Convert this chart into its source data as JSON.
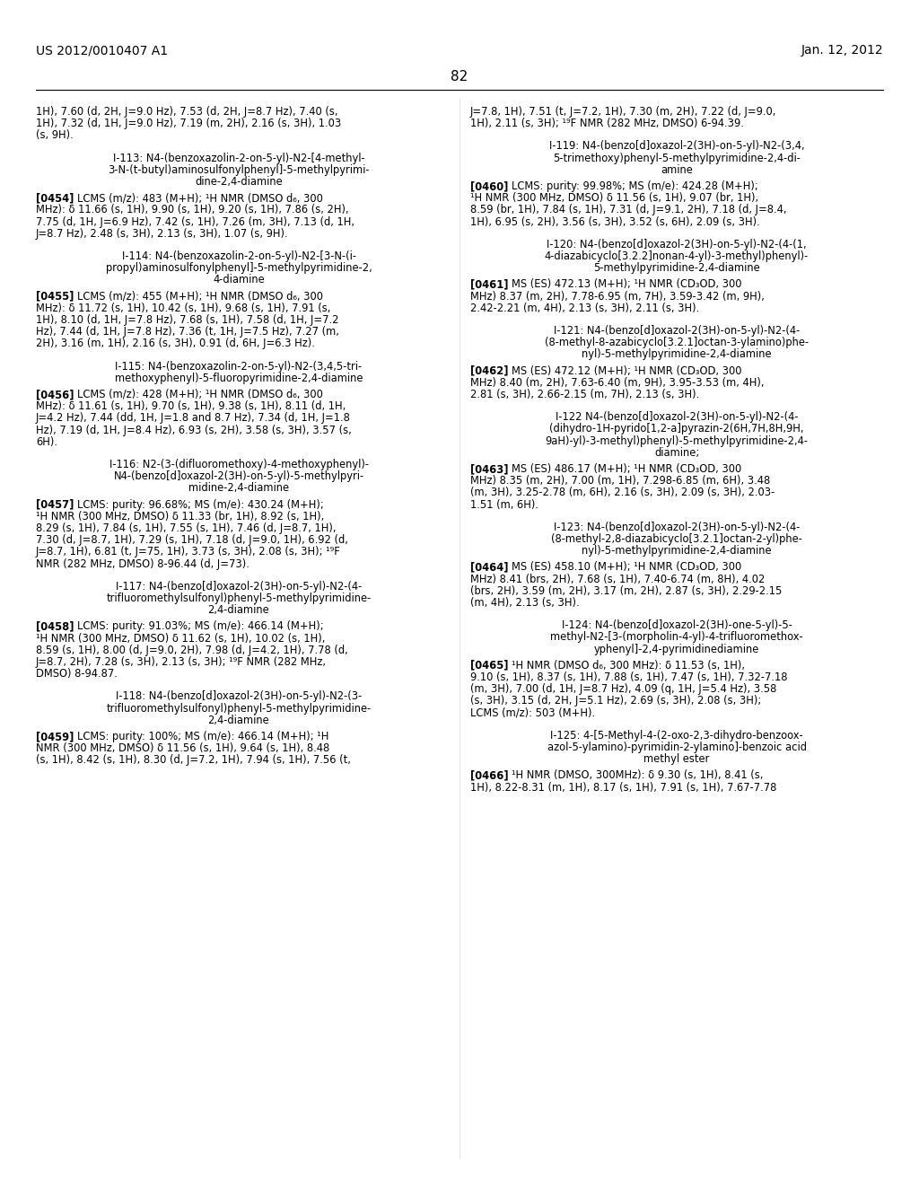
{
  "page_number": "82",
  "header_left": "US 2012/0010407 A1",
  "header_right": "Jan. 12, 2012",
  "background_color": "#ffffff",
  "text_color": "#000000",
  "left_col_paragraphs": [
    {
      "type": "continuation",
      "text": "1H), 7.60 (d, 2H, J=9.0 Hz), 7.53 (d, 2H, J=8.7 Hz), 7.40 (s,\n1H), 7.32 (d, 1H, J=9.0 Hz), 7.19 (m, 2H), 2.16 (s, 3H), 1.03\n(s, 9H)."
    },
    {
      "type": "title",
      "text": "I-113: N4-(benzoxazolin-2-on-5-yl)-N2-[4-methyl-\n3-N-(t-butyl)aminosulfonylphenyl]-5-methylpyrimi-\ndine-2,4-diamine"
    },
    {
      "type": "body",
      "tag": "[0454]",
      "text": "LCMS (m/z): 483 (M+H); ¹H NMR (DMSO d₆, 300\nMHz): δ 11.66 (s, 1H), 9.90 (s, 1H), 9.20 (s, 1H), 7.86 (s, 2H),\n7.75 (d, 1H, J=6.9 Hz), 7.42 (s, 1H), 7.26 (m, 3H), 7.13 (d, 1H,\nJ=8.7 Hz), 2.48 (s, 3H), 2.13 (s, 3H), 1.07 (s, 9H)."
    },
    {
      "type": "title",
      "text": "I-114: N4-(benzoxazolin-2-on-5-yl)-N2-[3-N-(i-\npropyl)aminosulfonylphenyl]-5-methylpyrimidine-2,\n4-diamine"
    },
    {
      "type": "body",
      "tag": "[0455]",
      "text": "LCMS (m/z): 455 (M+H); ¹H NMR (DMSO d₆, 300\nMHz): δ 11.72 (s, 1H), 10.42 (s, 1H), 9.68 (s, 1H), 7.91 (s,\n1H), 8.10 (d, 1H, J=7.8 Hz), 7.68 (s, 1H), 7.58 (d, 1H, J=7.2\nHz), 7.44 (d, 1H, J=7.8 Hz), 7.36 (t, 1H, J=7.5 Hz), 7.27 (m,\n2H), 3.16 (m, 1H), 2.16 (s, 3H), 0.91 (d, 6H, J=6.3 Hz)."
    },
    {
      "type": "title",
      "text": "I-115: N4-(benzoxazolin-2-on-5-yl)-N2-(3,4,5-tri-\nmethoxyphenyl)-5-fluoropyrimidine-2,4-diamine"
    },
    {
      "type": "body",
      "tag": "[0456]",
      "text": "LCMS (m/z): 428 (M+H); ¹H NMR (DMSO d₆, 300\nMHz): δ 11.61 (s, 1H), 9.70 (s, 1H), 9.38 (s, 1H), 8.11 (d, 1H,\nJ=4.2 Hz), 7.44 (dd, 1H, J=1.8 and 8.7 Hz), 7.34 (d, 1H, J=1.8\nHz), 7.19 (d, 1H, J=8.4 Hz), 6.93 (s, 2H), 3.58 (s, 3H), 3.57 (s,\n6H)."
    },
    {
      "type": "title",
      "text": "I-116: N2-(3-(difluoromethoxy)-4-methoxyphenyl)-\nN4-(benzo[d]oxazol-2(3H)-on-5-yl)-5-methylpyri-\nmidine-2,4-diamine"
    },
    {
      "type": "body",
      "tag": "[0457]",
      "text": "LCMS: purity: 96.68%; MS (m/e): 430.24 (M+H);\n¹H NMR (300 MHz, DMSO) δ 11.33 (br, 1H), 8.92 (s, 1H),\n8.29 (s, 1H), 7.84 (s, 1H), 7.55 (s, 1H), 7.46 (d, J=8.7, 1H),\n7.30 (d, J=8.7, 1H), 7.29 (s, 1H), 7.18 (d, J=9.0, 1H), 6.92 (d,\nJ=8.7, 1H), 6.81 (t, J=75, 1H), 3.73 (s, 3H), 2.08 (s, 3H); ¹⁹F\nNMR (282 MHz, DMSO) 8-96.44 (d, J=73)."
    },
    {
      "type": "title",
      "text": "I-117: N4-(benzo[d]oxazol-2(3H)-on-5-yl)-N2-(4-\ntrifluoromethylsulfonyl)phenyl-5-methylpyrimidine-\n2,4-diamine"
    },
    {
      "type": "body",
      "tag": "[0458]",
      "text": "LCMS: purity: 91.03%; MS (m/e): 466.14 (M+H);\n¹H NMR (300 MHz, DMSO) δ 11.62 (s, 1H), 10.02 (s, 1H),\n8.59 (s, 1H), 8.00 (d, J=9.0, 2H), 7.98 (d, J=4.2, 1H), 7.78 (d,\nJ=8.7, 2H), 7.28 (s, 3H), 2.13 (s, 3H); ¹⁹F NMR (282 MHz,\nDMSO) 8-94.87."
    },
    {
      "type": "title",
      "text": "I-118: N4-(benzo[d]oxazol-2(3H)-on-5-yl)-N2-(3-\ntrifluoromethylsulfonyl)phenyl-5-methylpyrimidine-\n2,4-diamine"
    },
    {
      "type": "body",
      "tag": "[0459]",
      "text": "LCMS: purity: 100%; MS (m/e): 466.14 (M+H); ¹H\nNMR (300 MHz, DMSO) δ 11.56 (s, 1H), 9.64 (s, 1H), 8.48\n(s, 1H), 8.42 (s, 1H), 8.30 (d, J=7.2, 1H), 7.94 (s, 1H), 7.56 (t,"
    }
  ],
  "right_col_paragraphs": [
    {
      "type": "continuation",
      "text": "J=7.8, 1H), 7.51 (t, J=7.2, 1H), 7.30 (m, 2H), 7.22 (d, J=9.0,\n1H), 2.11 (s, 3H); ¹⁹F NMR (282 MHz, DMSO) 6-94.39."
    },
    {
      "type": "title",
      "text": "I-119: N4-(benzo[d]oxazol-2(3H)-on-5-yl)-N2-(3,4,\n5-trimethoxy)phenyl-5-methylpyrimidine-2,4-di-\namine"
    },
    {
      "type": "body",
      "tag": "[0460]",
      "text": "LCMS: purity: 99.98%; MS (m/e): 424.28 (M+H);\n¹H NMR (300 MHz, DMSO) δ 11.56 (s, 1H), 9.07 (br, 1H),\n8.59 (br, 1H), 7.84 (s, 1H), 7.31 (d, J=9.1, 2H), 7.18 (d, J=8.4,\n1H), 6.95 (s, 2H), 3.56 (s, 3H), 3.52 (s, 6H), 2.09 (s, 3H)."
    },
    {
      "type": "title",
      "text": "I-120: N4-(benzo[d]oxazol-2(3H)-on-5-yl)-N2-(4-(1,\n4-diazabicyclo[3.2.2]nonan-4-yl)-3-methyl)phenyl)-\n5-methylpyrimidine-2,4-diamine"
    },
    {
      "type": "body",
      "tag": "[0461]",
      "text": "MS (ES) 472.13 (M+H); ¹H NMR (CD₃OD, 300\nMHz) 8.37 (m, 2H), 7.78-6.95 (m, 7H), 3.59-3.42 (m, 9H),\n2.42-2.21 (m, 4H), 2.13 (s, 3H), 2.11 (s, 3H)."
    },
    {
      "type": "title",
      "text": "I-121: N4-(benzo[d]oxazol-2(3H)-on-5-yl)-N2-(4-\n(8-methyl-8-azabicyclo[3.2.1]octan-3-ylamino)phe-\nnyl)-5-methylpyrimidine-2,4-diamine"
    },
    {
      "type": "body",
      "tag": "[0462]",
      "text": "MS (ES) 472.12 (M+H); ¹H NMR (CD₃OD, 300\nMHz) 8.40 (m, 2H), 7.63-6.40 (m, 9H), 3.95-3.53 (m, 4H),\n2.81 (s, 3H), 2.66-2.15 (m, 7H), 2.13 (s, 3H)."
    },
    {
      "type": "title",
      "text": "I-122 N4-(benzo[d]oxazol-2(3H)-on-5-yl)-N2-(4-\n(dihydro-1H-pyrido[1,2-a]pyrazin-2(6H,7H,8H,9H,\n9aH)-yl)-3-methyl)phenyl)-5-methylpyrimidine-2,4-\ndiamine;"
    },
    {
      "type": "body",
      "tag": "[0463]",
      "text": "MS (ES) 486.17 (M+H); ¹H NMR (CD₃OD, 300\nMHz) 8.35 (m, 2H), 7.00 (m, 1H), 7.298-6.85 (m, 6H), 3.48\n(m, 3H), 3.25-2.78 (m, 6H), 2.16 (s, 3H), 2.09 (s, 3H), 2.03-\n1.51 (m, 6H)."
    },
    {
      "type": "title",
      "text": "I-123: N4-(benzo[d]oxazol-2(3H)-on-5-yl)-N2-(4-\n(8-methyl-2,8-diazabicyclo[3.2.1]octan-2-yl)phe-\nnyl)-5-methylpyrimidine-2,4-diamine"
    },
    {
      "type": "body",
      "tag": "[0464]",
      "text": "MS (ES) 458.10 (M+H); ¹H NMR (CD₃OD, 300\nMHz) 8.41 (brs, 2H), 7.68 (s, 1H), 7.40-6.74 (m, 8H), 4.02\n(brs, 2H), 3.59 (m, 2H), 3.17 (m, 2H), 2.87 (s, 3H), 2.29-2.15\n(m, 4H), 2.13 (s, 3H)."
    },
    {
      "type": "title",
      "text": "I-124: N4-(benzo[d]oxazol-2(3H)-one-5-yl)-5-\nmethyl-N2-[3-(morpholin-4-yl)-4-trifluoromethox-\nyphenyl]-2,4-pyrimidinediamine"
    },
    {
      "type": "body",
      "tag": "[0465]",
      "text": "¹H NMR (DMSO d₆, 300 MHz): δ 11.53 (s, 1H),\n9.10 (s, 1H), 8.37 (s, 1H), 7.88 (s, 1H), 7.47 (s, 1H), 7.32-7.18\n(m, 3H), 7.00 (d, 1H, J=8.7 Hz), 4.09 (q, 1H, J=5.4 Hz), 3.58\n(s, 3H), 3.15 (d, 2H, J=5.1 Hz), 2.69 (s, 3H), 2.08 (s, 3H);\nLCMS (m/z): 503 (M+H)."
    },
    {
      "type": "title",
      "text": "I-125: 4-[5-Methyl-4-(2-oxo-2,3-dihydro-benzoox-\nazol-5-ylamino)-pyrimidin-2-ylamino]-benzoic acid\nmethyl ester"
    },
    {
      "type": "body",
      "tag": "[0466]",
      "text": "¹H NMR (DMSO, 300MHz): δ 9.30 (s, 1H), 8.41 (s,\n1H), 8.22-8.31 (m, 1H), 8.17 (s, 1H), 7.91 (s, 1H), 7.67-7.78"
    }
  ]
}
